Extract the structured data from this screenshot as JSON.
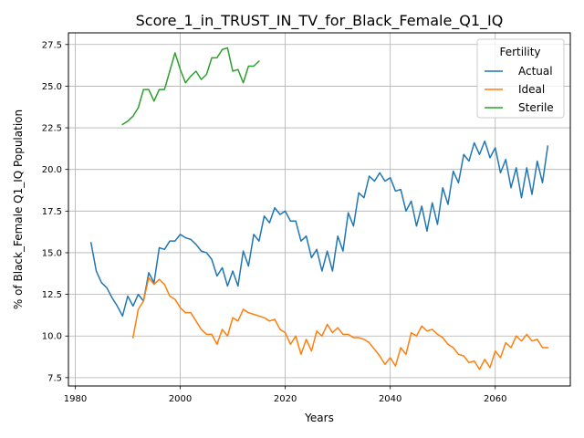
{
  "chart_data": {
    "type": "line",
    "title": "Score_1_in_TRUST_IN_TV_for_Black_Female_Q1_IQ",
    "xlabel": "Years",
    "ylabel": "% of Black_Female Q1_IQ Population",
    "xlim": [
      1978.7,
      2074.3
    ],
    "ylim": [
      7.0,
      28.2
    ],
    "xticks": [
      1980,
      2000,
      2020,
      2040,
      2060
    ],
    "yticks": [
      7.5,
      10.0,
      12.5,
      15.0,
      17.5,
      20.0,
      22.5,
      25.0,
      27.5
    ],
    "grid": true,
    "legend": {
      "title": "Fertility",
      "placement": "top-right"
    },
    "series": [
      {
        "name": "Actual",
        "color": "#1f77b4",
        "x_start": 1983,
        "values": [
          15.6,
          13.9,
          13.2,
          12.9,
          12.3,
          11.8,
          11.2,
          12.4,
          11.8,
          12.5,
          12.1,
          13.8,
          13.2,
          15.3,
          15.2,
          15.7,
          15.7,
          16.1,
          15.9,
          15.8,
          15.5,
          15.1,
          15.0,
          14.6,
          13.6,
          14.1,
          13.0,
          13.9,
          13.0,
          15.1,
          14.2,
          16.1,
          15.7,
          17.2,
          16.8,
          17.7,
          17.3,
          17.5,
          16.9,
          16.9,
          15.7,
          16.0,
          14.7,
          15.2,
          13.9,
          15.1,
          13.9,
          16.0,
          15.1,
          17.4,
          16.6,
          18.6,
          18.3,
          19.6,
          19.3,
          19.8,
          19.3,
          19.5,
          18.7,
          18.8,
          17.5,
          18.1,
          16.6,
          17.8,
          16.3,
          18.0,
          16.7,
          18.9,
          17.9,
          19.9,
          19.2,
          20.9,
          20.5,
          21.6,
          20.9,
          21.7,
          20.7,
          21.3,
          19.8,
          20.6,
          18.9,
          20.1,
          18.3,
          20.1,
          18.5,
          20.5,
          19.2,
          21.4
        ]
      },
      {
        "name": "Ideal",
        "color": "#ff7f0e",
        "x_start": 1991,
        "values": [
          9.9,
          11.6,
          12.1,
          13.5,
          13.1,
          13.4,
          13.1,
          12.4,
          12.2,
          11.7,
          11.4,
          11.4,
          10.9,
          10.4,
          10.1,
          10.1,
          9.5,
          10.4,
          10.0,
          11.1,
          10.9,
          11.6,
          11.4,
          11.3,
          11.2,
          11.1,
          10.9,
          11.0,
          10.4,
          10.2,
          9.5,
          10.0,
          8.9,
          9.8,
          9.1,
          10.3,
          10.0,
          10.7,
          10.2,
          10.5,
          10.1,
          10.1,
          9.9,
          9.9,
          9.8,
          9.6,
          9.2,
          8.8,
          8.3,
          8.7,
          8.2,
          9.3,
          8.9,
          10.2,
          10.0,
          10.6,
          10.3,
          10.4,
          10.1,
          9.9,
          9.5,
          9.3,
          8.9,
          8.8,
          8.4,
          8.5,
          8.0,
          8.6,
          8.1,
          9.1,
          8.7,
          9.6,
          9.3,
          10.0,
          9.7,
          10.1,
          9.7,
          9.8,
          9.3,
          9.3
        ]
      },
      {
        "name": "Sterile",
        "color": "#2ca02c",
        "x_start": 1989,
        "values": [
          22.7,
          22.9,
          23.2,
          23.7,
          24.8,
          24.8,
          24.1,
          24.8,
          24.8,
          25.9,
          27.0,
          26.0,
          25.2,
          25.6,
          25.9,
          25.4,
          25.7,
          26.7,
          26.7,
          27.2,
          27.3,
          25.9,
          26.0,
          25.2,
          26.2,
          26.2,
          26.5
        ]
      }
    ]
  }
}
